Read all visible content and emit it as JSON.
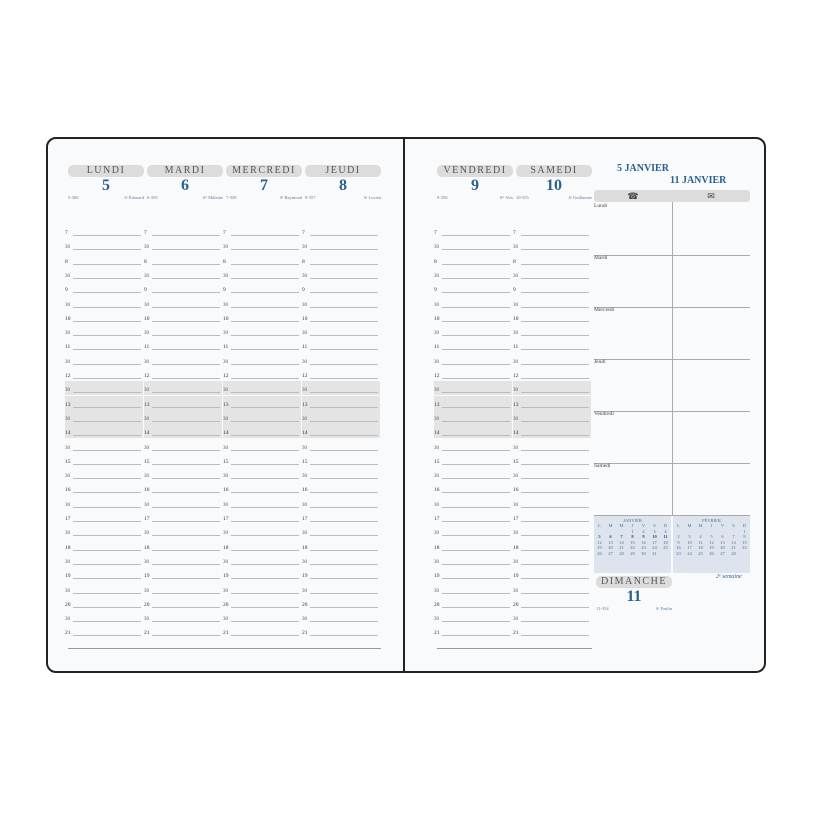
{
  "week": {
    "start_title": "5 JANVIER",
    "end_title": "11 JANVIER",
    "label": "2ᵉ semaine"
  },
  "days": [
    {
      "name": "LUNDI",
      "num": "5",
      "code": "5-360",
      "saint": "Sᵗ Édouard"
    },
    {
      "name": "MARDI",
      "num": "6",
      "code": "6-359",
      "saint": "Sᵗᵉ Mélaine"
    },
    {
      "name": "MERCREDI",
      "num": "7",
      "code": "7-358",
      "saint": "Sᵗ Raymond"
    },
    {
      "name": "JEUDI",
      "num": "8",
      "code": "8-357",
      "saint": "Sᵗ Lucien"
    },
    {
      "name": "VENDREDI",
      "num": "9",
      "code": "9-356",
      "saint": "Sᵗᵉ Alix"
    },
    {
      "name": "SAMEDI",
      "num": "10",
      "code": "10-355",
      "saint": "Sᵗ Guillaume"
    }
  ],
  "sunday": {
    "name": "DIMANCHE",
    "num": "11",
    "code": "11-354",
    "saint": "Sᵗ Paulin"
  },
  "hours": [
    "7",
    "30",
    "8",
    "30",
    "9",
    "30",
    "10",
    "30",
    "11",
    "30",
    "12",
    "30",
    "13",
    "30",
    "14",
    "30",
    "15",
    "30",
    "16",
    "30",
    "17",
    "30",
    "18",
    "30",
    "19",
    "30",
    "20",
    "30",
    "21"
  ],
  "notes": {
    "icons": [
      "telephone-icon",
      "envelope-icon"
    ],
    "phone_glyph": "☎",
    "mail_glyph": "✉",
    "days": [
      "Lundi",
      "Mardi",
      "Mercredi",
      "Jeudi",
      "Vendredi",
      "Samedi"
    ]
  },
  "calendars": [
    {
      "month": "JANVIER",
      "headers": [
        "L",
        "M",
        "M",
        "J",
        "V",
        "S",
        "D"
      ],
      "weeks": [
        [
          "",
          "",
          "",
          "1",
          "2",
          "3",
          "4"
        ],
        [
          "5",
          "6",
          "7",
          "8",
          "9",
          "10",
          "11"
        ],
        [
          "12",
          "13",
          "14",
          "15",
          "16",
          "17",
          "18"
        ],
        [
          "19",
          "20",
          "21",
          "22",
          "23",
          "24",
          "25"
        ],
        [
          "26",
          "27",
          "28",
          "29",
          "30",
          "31",
          ""
        ]
      ],
      "highlight_week": 1
    },
    {
      "month": "FÉVRIER",
      "headers": [
        "L",
        "M",
        "M",
        "J",
        "V",
        "S",
        "D"
      ],
      "weeks": [
        [
          "",
          "",
          "",
          "",
          "",
          "",
          "1"
        ],
        [
          "2",
          "3",
          "4",
          "5",
          "6",
          "7",
          "8"
        ],
        [
          "9",
          "10",
          "11",
          "12",
          "13",
          "14",
          "15"
        ],
        [
          "16",
          "17",
          "18",
          "19",
          "20",
          "21",
          "22"
        ],
        [
          "23",
          "24",
          "25",
          "26",
          "27",
          "28",
          ""
        ]
      ],
      "highlight_week": -1
    }
  ]
}
